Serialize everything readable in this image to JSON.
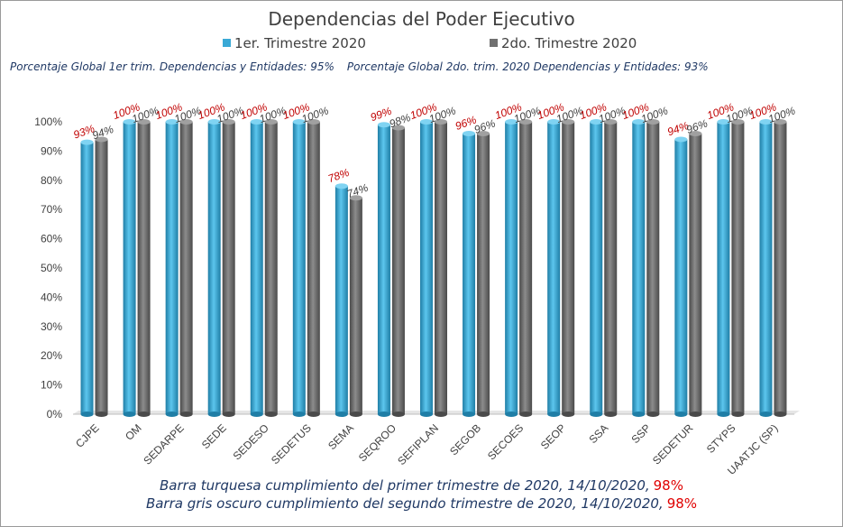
{
  "chart_data": {
    "type": "bar",
    "title": "Dependencias del Poder Ejecutivo",
    "categories": [
      "CJPE",
      "OM",
      "SEDARPE",
      "SEDE",
      "SEDESO",
      "SEDETUS",
      "SEMA",
      "SEQROO",
      "SEFIPLAN",
      "SEGOB",
      "SECOES",
      "SEOP",
      "SSA",
      "SSP",
      "SEDETUR",
      "STYPS",
      "UAATJC (SP)"
    ],
    "series": [
      {
        "name": "1er. Trimestre 2020",
        "color": "#3aa9d6",
        "values": [
          93,
          100,
          100,
          100,
          100,
          100,
          78,
          99,
          100,
          96,
          100,
          100,
          100,
          100,
          94,
          100,
          100
        ],
        "labels": [
          "93%",
          "100%",
          "100%",
          "100%",
          "100%",
          "100%",
          "78%",
          "99%",
          "100%",
          "96%",
          "100%",
          "100%",
          "100%",
          "100%",
          "94%",
          "100%",
          "100%"
        ]
      },
      {
        "name": "2do. Trimestre 2020",
        "color": "#707070",
        "values": [
          94,
          100,
          100,
          100,
          100,
          100,
          74,
          98,
          100,
          96,
          100,
          100,
          100,
          100,
          96,
          100,
          100
        ],
        "labels": [
          "94%",
          "100%",
          "100%",
          "100%",
          "100%",
          "100%",
          "74%",
          "98%",
          "100%",
          "96%",
          "100%",
          "100%",
          "100%",
          "100%",
          "96%",
          "100%",
          "100%"
        ]
      }
    ],
    "yticks": [
      "0%",
      "10%",
      "20%",
      "30%",
      "40%",
      "50%",
      "60%",
      "70%",
      "80%",
      "90%",
      "100%"
    ],
    "ylim": [
      0,
      100
    ],
    "grid": false,
    "legend": "top"
  },
  "subtitle": {
    "q1": "Porcentaje Global 1er trim. Dependencias y Entidades: 95%",
    "q2": "Porcentaje Global  2do. trim. 2020 Dependencias y Entidades: 93%"
  },
  "notes": {
    "line1": "Barra turquesa  cumplimiento  del primer trimestre de 2020,  14/10/2020,",
    "line1_value": "98%",
    "line2": "Barra gris oscuro cumplimiento  del segundo  trimestre de 2020,  14/10/2020,",
    "line2_value": "98%"
  },
  "colors": {
    "label_q1": "#c00000",
    "label_q2": "#404040",
    "axis_text": "#404040",
    "note_text": "#1f3864",
    "note_highlight": "#e00000"
  }
}
